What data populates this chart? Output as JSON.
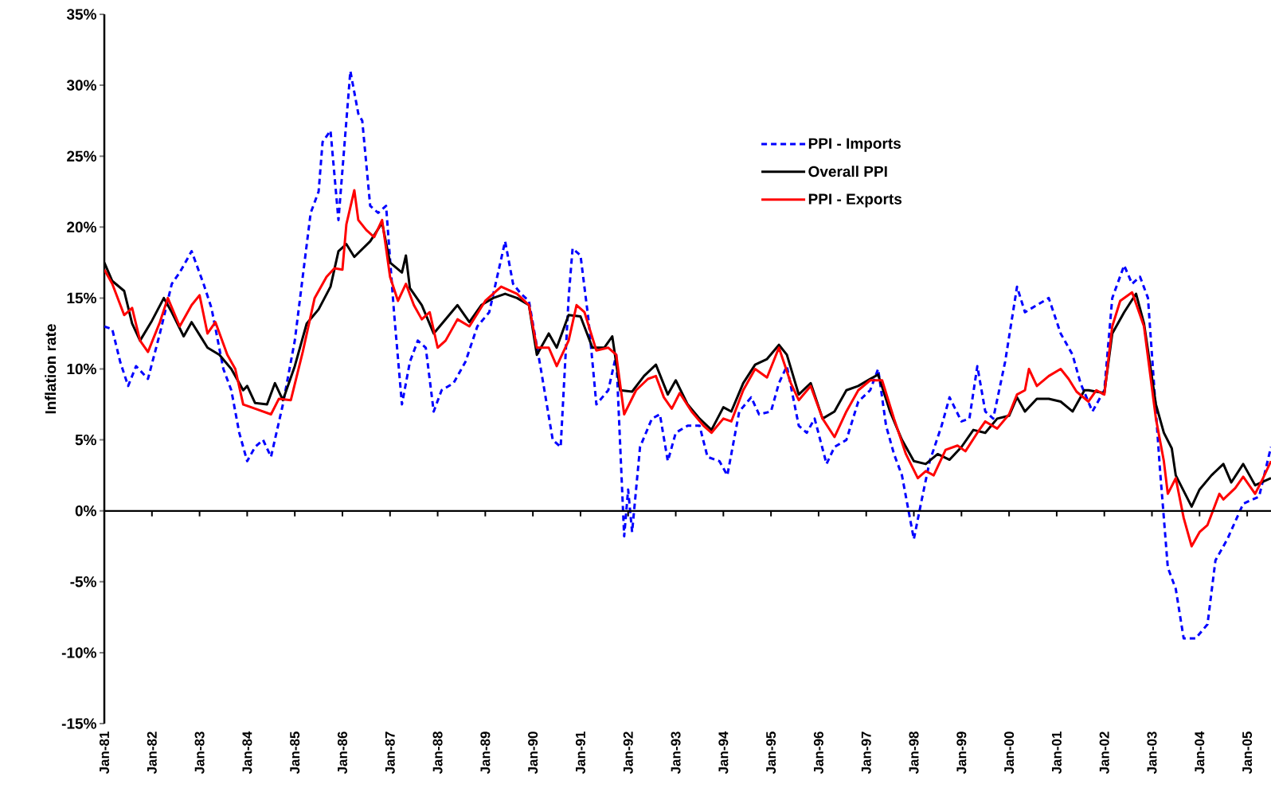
{
  "chart_data": {
    "type": "line",
    "ylabel": "Inflation rate",
    "xlim": [
      "1981-01",
      "2005-07"
    ],
    "ylim": [
      -15,
      35
    ],
    "xticks": [
      {
        "value": "1981-01",
        "label": "Jan-81"
      },
      {
        "value": "1982-01",
        "label": "Jan-82"
      },
      {
        "value": "1983-01",
        "label": "Jan-83"
      },
      {
        "value": "1984-01",
        "label": "Jan-84"
      },
      {
        "value": "1985-01",
        "label": "Jan-85"
      },
      {
        "value": "1986-01",
        "label": "Jan-86"
      },
      {
        "value": "1987-01",
        "label": "Jan-87"
      },
      {
        "value": "1988-01",
        "label": "Jan-88"
      },
      {
        "value": "1989-01",
        "label": "Jan-89"
      },
      {
        "value": "1990-01",
        "label": "Jan-90"
      },
      {
        "value": "1991-01",
        "label": "Jan-91"
      },
      {
        "value": "1992-01",
        "label": "Jan-92"
      },
      {
        "value": "1993-01",
        "label": "Jan-93"
      },
      {
        "value": "1994-01",
        "label": "Jan-94"
      },
      {
        "value": "1995-01",
        "label": "Jan-95"
      },
      {
        "value": "1996-01",
        "label": "Jan-96"
      },
      {
        "value": "1997-01",
        "label": "Jan-97"
      },
      {
        "value": "1998-01",
        "label": "Jan-98"
      },
      {
        "value": "1999-01",
        "label": "Jan-99"
      },
      {
        "value": "2000-01",
        "label": "Jan-00"
      },
      {
        "value": "2001-01",
        "label": "Jan-01"
      },
      {
        "value": "2002-01",
        "label": "Jan-02"
      },
      {
        "value": "2003-01",
        "label": "Jan-03"
      },
      {
        "value": "2004-01",
        "label": "Jan-04"
      },
      {
        "value": "2005-01",
        "label": "Jan-05"
      }
    ],
    "yticks": [
      {
        "value": -15,
        "label": "-15%"
      },
      {
        "value": -10,
        "label": "-10%"
      },
      {
        "value": -5,
        "label": "-5%"
      },
      {
        "value": 0,
        "label": "0%"
      },
      {
        "value": 5,
        "label": "5%"
      },
      {
        "value": 10,
        "label": "10%"
      },
      {
        "value": 15,
        "label": "15%"
      },
      {
        "value": 20,
        "label": "20%"
      },
      {
        "value": 25,
        "label": "25%"
      },
      {
        "value": 30,
        "label": "30%"
      },
      {
        "value": 35,
        "label": "35%"
      }
    ],
    "legend": "top right",
    "series": [
      {
        "name": "PPI - Imports",
        "color": "#0000ff",
        "line_style": "dashed",
        "x": [
          "1981-01",
          "1981-03",
          "1981-05",
          "1981-07",
          "1981-09",
          "1981-12",
          "1982-03",
          "1982-06",
          "1982-08",
          "1982-11",
          "1983-02",
          "1983-04",
          "1983-07",
          "1983-09",
          "1983-11",
          "1984-01",
          "1984-03",
          "1984-05",
          "1984-07",
          "1984-10",
          "1985-01",
          "1985-03",
          "1985-05",
          "1985-07",
          "1985-08",
          "1985-10",
          "1985-12",
          "1986-03",
          "1986-05",
          "1986-06",
          "1986-08",
          "1986-10",
          "1986-12",
          "1987-02",
          "1987-04",
          "1987-06",
          "1987-08",
          "1987-10",
          "1987-12",
          "1988-02",
          "1988-05",
          "1988-08",
          "1988-11",
          "1989-02",
          "1989-04",
          "1989-06",
          "1989-08",
          "1989-10",
          "1989-12",
          "1990-03",
          "1990-06",
          "1990-08",
          "1990-10",
          "1990-11",
          "1991-01",
          "1991-03",
          "1991-05",
          "1991-08",
          "1991-10",
          "1991-12",
          "1992-01",
          "1992-02",
          "1992-04",
          "1992-07",
          "1992-09",
          "1992-11",
          "1993-01",
          "1993-04",
          "1993-07",
          "1993-09",
          "1993-12",
          "1994-02",
          "1994-05",
          "1994-08",
          "1994-10",
          "1995-01",
          "1995-03",
          "1995-05",
          "1995-08",
          "1995-10",
          "1995-12",
          "1996-03",
          "1996-05",
          "1996-08",
          "1996-11",
          "1997-02",
          "1997-04",
          "1997-06",
          "1997-08",
          "1997-10",
          "1998-01",
          "1998-03",
          "1998-05",
          "1998-08",
          "1998-10",
          "1999-01",
          "1999-03",
          "1999-05",
          "1999-07",
          "1999-09",
          "1999-12",
          "2000-03",
          "2000-05",
          "2000-08",
          "2000-11",
          "2001-02",
          "2001-05",
          "2001-07",
          "2001-10",
          "2002-01",
          "2002-03",
          "2002-06",
          "2002-08",
          "2002-10",
          "2002-12",
          "2003-03",
          "2003-05",
          "2003-07",
          "2003-09",
          "2003-12",
          "2004-03",
          "2004-05",
          "2004-08",
          "2004-12",
          "2005-04",
          "2005-07"
        ],
        "values": [
          13.0,
          12.8,
          10.5,
          8.8,
          10.2,
          9.3,
          12.5,
          16.0,
          16.8,
          18.3,
          16.0,
          14.3,
          10.0,
          8.5,
          5.5,
          3.5,
          4.5,
          5.0,
          3.8,
          7.5,
          12.0,
          16.5,
          21.0,
          22.5,
          26.0,
          26.8,
          20.5,
          31.0,
          28.0,
          27.5,
          21.5,
          21.0,
          21.5,
          14.0,
          7.5,
          10.5,
          12.0,
          11.5,
          7.0,
          8.5,
          9.0,
          10.5,
          13.0,
          14.0,
          16.5,
          19.0,
          16.0,
          15.3,
          14.8,
          10.0,
          5.0,
          4.5,
          15.0,
          18.5,
          18.0,
          13.5,
          7.5,
          8.5,
          11.0,
          -1.8,
          1.5,
          -1.5,
          4.5,
          6.5,
          6.8,
          3.5,
          5.5,
          6.0,
          6.0,
          3.8,
          3.5,
          2.5,
          7.0,
          8.0,
          6.8,
          7.0,
          9.0,
          10.2,
          6.0,
          5.5,
          6.5,
          3.3,
          4.5,
          5.0,
          7.7,
          8.5,
          10.0,
          6.0,
          4.0,
          2.5,
          -2.0,
          0.8,
          3.5,
          6.0,
          8.0,
          6.3,
          6.5,
          10.2,
          7.0,
          6.5,
          10.5,
          15.8,
          14.0,
          14.5,
          15.0,
          12.5,
          11.0,
          9.0,
          7.0,
          8.5,
          15.0,
          17.3,
          16.0,
          16.5,
          15.0,
          3.0,
          -4.0,
          -5.5,
          -9.0,
          -9.0,
          -8.0,
          -3.5,
          -2.0,
          0.5,
          1.0,
          4.5
        ]
      },
      {
        "name": "Overall PPI",
        "color": "#000000",
        "line_style": "solid",
        "x": [
          "1981-01",
          "1981-03",
          "1981-06",
          "1981-08",
          "1981-10",
          "1982-01",
          "1982-04",
          "1982-06",
          "1982-09",
          "1982-11",
          "1983-03",
          "1983-06",
          "1983-09",
          "1983-12",
          "1984-01",
          "1984-03",
          "1984-06",
          "1984-08",
          "1984-10",
          "1985-01",
          "1985-04",
          "1985-07",
          "1985-10",
          "1985-12",
          "1986-02",
          "1986-04",
          "1986-08",
          "1986-11",
          "1987-01",
          "1987-04",
          "1987-05",
          "1987-06",
          "1987-09",
          "1987-12",
          "1988-03",
          "1988-06",
          "1988-09",
          "1988-12",
          "1989-03",
          "1989-06",
          "1989-09",
          "1989-12",
          "1990-02",
          "1990-05",
          "1990-07",
          "1990-10",
          "1991-01",
          "1991-04",
          "1991-07",
          "1991-09",
          "1991-11",
          "1992-02",
          "1992-05",
          "1992-08",
          "1992-11",
          "1993-01",
          "1993-04",
          "1993-07",
          "1993-10",
          "1994-01",
          "1994-03",
          "1994-06",
          "1994-09",
          "1994-12",
          "1995-03",
          "1995-05",
          "1995-08",
          "1995-11",
          "1996-02",
          "1996-05",
          "1996-08",
          "1996-11",
          "1997-02",
          "1997-04",
          "1997-07",
          "1997-10",
          "1998-01",
          "1998-04",
          "1998-07",
          "1998-10",
          "1999-01",
          "1999-04",
          "1999-07",
          "1999-10",
          "2000-01",
          "2000-03",
          "2000-05",
          "2000-08",
          "2000-11",
          "2001-02",
          "2001-05",
          "2001-08",
          "2001-09",
          "2002-01",
          "2002-03",
          "2002-06",
          "2002-09",
          "2002-11",
          "2003-02",
          "2003-04",
          "2003-06",
          "2003-07",
          "2003-11",
          "2004-01",
          "2004-04",
          "2004-07",
          "2004-09",
          "2004-12",
          "2005-03",
          "2005-07"
        ],
        "values": [
          17.5,
          16.2,
          15.5,
          13.2,
          12.0,
          13.4,
          15.0,
          14.0,
          12.3,
          13.3,
          11.5,
          11.0,
          10.0,
          8.5,
          8.8,
          7.6,
          7.5,
          9.0,
          7.8,
          10.2,
          13.2,
          14.2,
          15.8,
          18.3,
          18.8,
          17.9,
          19.0,
          20.3,
          17.5,
          16.8,
          18.0,
          15.7,
          14.5,
          12.5,
          13.5,
          14.5,
          13.3,
          14.5,
          15.0,
          15.3,
          15.0,
          14.5,
          11.0,
          12.5,
          11.5,
          13.8,
          13.7,
          11.5,
          11.5,
          12.3,
          8.5,
          8.4,
          9.5,
          10.3,
          8.2,
          9.2,
          7.5,
          6.5,
          5.7,
          7.3,
          7.0,
          9.0,
          10.3,
          10.7,
          11.7,
          11.0,
          8.2,
          9.0,
          6.5,
          7.0,
          8.5,
          8.8,
          9.3,
          9.6,
          7.0,
          5.0,
          3.5,
          3.3,
          4.0,
          3.6,
          4.5,
          5.7,
          5.5,
          6.5,
          6.7,
          8.0,
          7.0,
          7.9,
          7.9,
          7.7,
          7.0,
          8.5,
          8.5,
          8.3,
          12.5,
          14.0,
          15.3,
          13.2,
          7.5,
          5.5,
          4.4,
          2.5,
          0.3,
          1.5,
          2.5,
          3.3,
          2.0,
          3.3,
          1.8,
          2.3
        ]
      },
      {
        "name": "PPI - Exports",
        "color": "#ff0000",
        "line_style": "solid",
        "x": [
          "1981-01",
          "1981-03",
          "1981-06",
          "1981-08",
          "1981-10",
          "1981-12",
          "1982-03",
          "1982-05",
          "1982-08",
          "1982-11",
          "1983-01",
          "1983-03",
          "1983-05",
          "1983-08",
          "1983-10",
          "1983-12",
          "1984-03",
          "1984-07",
          "1984-09",
          "1984-12",
          "1985-03",
          "1985-06",
          "1985-09",
          "1985-11",
          "1986-01",
          "1986-02",
          "1986-04",
          "1986-05",
          "1986-07",
          "1986-09",
          "1986-11",
          "1987-01",
          "1987-03",
          "1987-05",
          "1987-07",
          "1987-09",
          "1987-11",
          "1988-01",
          "1988-03",
          "1988-06",
          "1988-09",
          "1989-01",
          "1989-05",
          "1989-09",
          "1989-12",
          "1990-02",
          "1990-05",
          "1990-07",
          "1990-10",
          "1990-12",
          "1991-02",
          "1991-05",
          "1991-08",
          "1991-10",
          "1991-12",
          "1992-03",
          "1992-06",
          "1992-08",
          "1992-10",
          "1992-12",
          "1993-02",
          "1993-05",
          "1993-08",
          "1993-10",
          "1994-01",
          "1994-03",
          "1994-06",
          "1994-09",
          "1994-12",
          "1995-03",
          "1995-06",
          "1995-08",
          "1995-11",
          "1996-02",
          "1996-05",
          "1996-08",
          "1996-11",
          "1997-02",
          "1997-05",
          "1997-08",
          "1997-11",
          "1998-02",
          "1998-04",
          "1998-06",
          "1998-09",
          "1998-12",
          "1999-02",
          "1999-05",
          "1999-07",
          "1999-10",
          "2000-01",
          "2000-03",
          "2000-05",
          "2000-06",
          "2000-08",
          "2000-11",
          "2001-02",
          "2001-04",
          "2001-06",
          "2001-09",
          "2001-11",
          "2002-01",
          "2002-03",
          "2002-05",
          "2002-08",
          "2002-11",
          "2003-02",
          "2003-04",
          "2003-05",
          "2003-07",
          "2003-09",
          "2003-11",
          "2004-01",
          "2004-03",
          "2004-06",
          "2004-07",
          "2004-10",
          "2004-12",
          "2005-03",
          "2005-05",
          "2005-07"
        ],
        "values": [
          17.0,
          16.0,
          13.8,
          14.3,
          12.0,
          11.2,
          13.3,
          15.0,
          13.0,
          14.5,
          15.2,
          12.5,
          13.3,
          11.0,
          10.0,
          7.5,
          7.2,
          6.8,
          7.9,
          7.8,
          11.2,
          15.0,
          16.5,
          17.1,
          17.0,
          20.2,
          22.6,
          20.5,
          19.8,
          19.3,
          20.5,
          16.5,
          14.8,
          16.0,
          14.5,
          13.5,
          14.0,
          11.5,
          12.0,
          13.5,
          13.0,
          14.8,
          15.8,
          15.3,
          14.5,
          11.5,
          11.5,
          10.2,
          12.0,
          14.5,
          14.0,
          11.3,
          11.5,
          11.0,
          6.8,
          8.5,
          9.3,
          9.5,
          8.0,
          7.2,
          8.3,
          7.0,
          6.0,
          5.5,
          6.5,
          6.3,
          8.5,
          10.0,
          9.4,
          11.5,
          9.0,
          7.8,
          8.8,
          6.5,
          5.2,
          7.0,
          8.5,
          9.2,
          9.2,
          6.5,
          4.0,
          2.3,
          2.8,
          2.5,
          4.3,
          4.6,
          4.2,
          5.5,
          6.3,
          5.8,
          6.8,
          8.2,
          8.5,
          10.0,
          8.8,
          9.5,
          10.0,
          9.3,
          8.4,
          7.7,
          8.5,
          8.2,
          13.0,
          14.8,
          15.4,
          13.0,
          6.5,
          3.5,
          1.2,
          2.3,
          -0.5,
          -2.5,
          -1.5,
          -1.0,
          1.2,
          0.8,
          1.6,
          2.4,
          1.2,
          2.3,
          3.5
        ]
      }
    ]
  }
}
